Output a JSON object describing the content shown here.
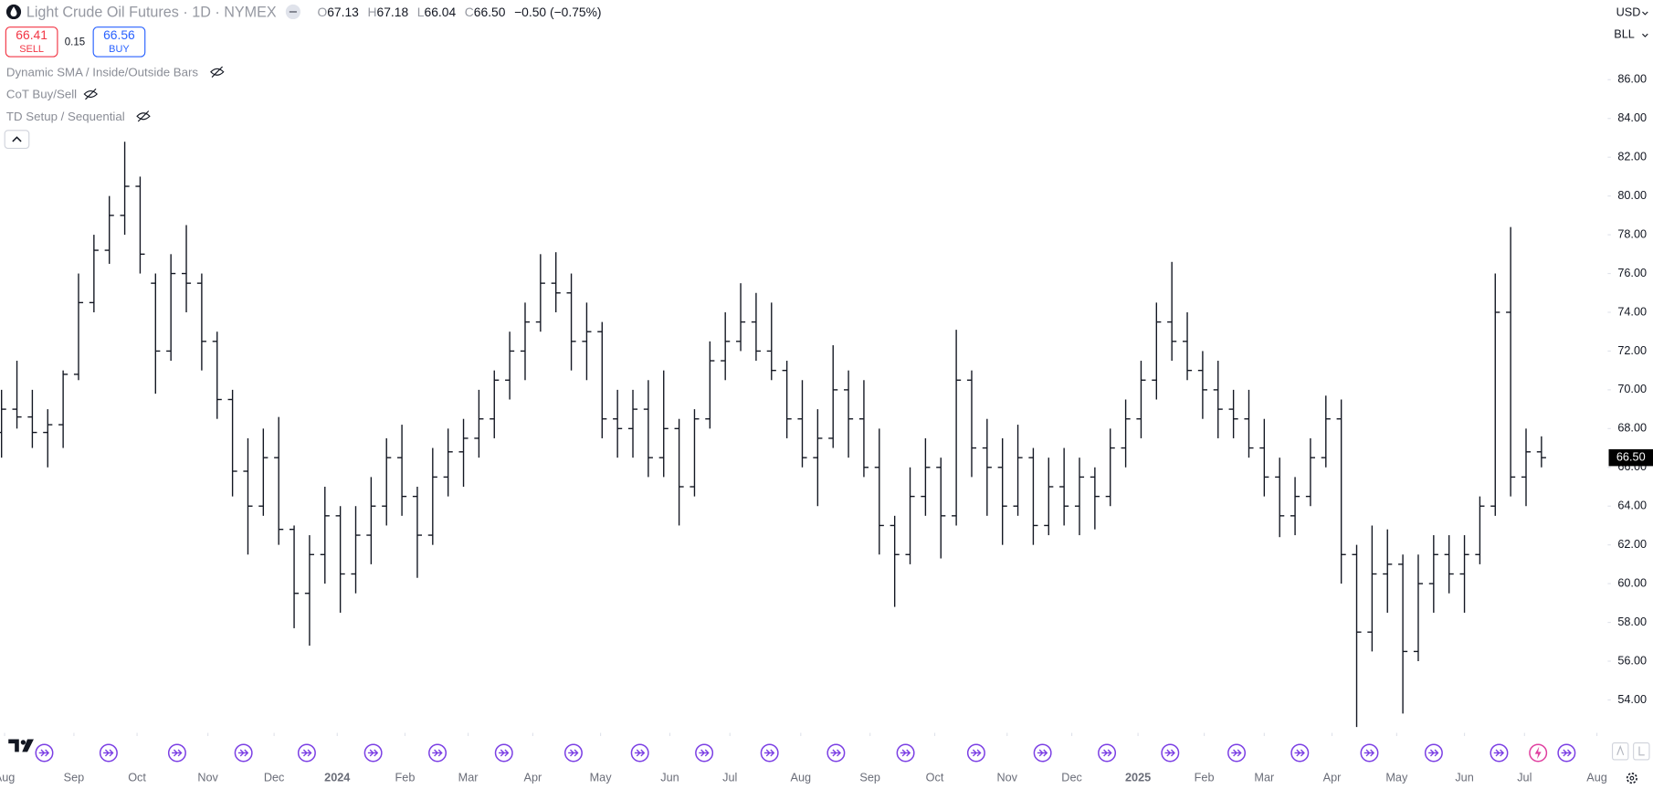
{
  "header": {
    "symbol": "Light Crude Oil Futures · 1D · NYMEX",
    "ohlc_labels": [
      "O",
      "H",
      "L",
      "C"
    ],
    "ohlc_values": [
      "67.13",
      "67.18",
      "66.04",
      "66.50"
    ],
    "change": "−0.50 (−0.75%)"
  },
  "trade": {
    "sell_price": "66.41",
    "sell_label": "SELL",
    "spread": "0.15",
    "buy_price": "66.56",
    "buy_label": "BUY"
  },
  "indicators": [
    "Dynamic SMA / Inside/Outside Bars",
    "CoT Buy/Sell",
    "TD Setup / Sequential"
  ],
  "currency": "USD",
  "unit": "BLL",
  "chart_data": {
    "type": "ohlc",
    "color": "#131722",
    "ohlc": [
      [
        67.8,
        70.0,
        66.5,
        69.0
      ],
      [
        69.0,
        71.5,
        68.0,
        68.6
      ],
      [
        68.6,
        70.0,
        67.0,
        67.8
      ],
      [
        67.8,
        69.0,
        66.0,
        68.2
      ],
      [
        68.2,
        71.0,
        67.0,
        70.8
      ],
      [
        70.8,
        76.0,
        70.5,
        74.5
      ],
      [
        74.5,
        78.0,
        74.0,
        77.2
      ],
      [
        77.2,
        80.0,
        76.5,
        79.0
      ],
      [
        79.0,
        82.8,
        78.0,
        80.5
      ],
      [
        80.5,
        81.0,
        76.0,
        77.0
      ],
      [
        75.5,
        76.0,
        69.8,
        72.0
      ],
      [
        72.0,
        77.0,
        71.5,
        76.0
      ],
      [
        76.0,
        78.5,
        74.0,
        75.5
      ],
      [
        75.5,
        76.0,
        71.0,
        72.5
      ],
      [
        72.5,
        73.0,
        68.5,
        69.5
      ],
      [
        69.5,
        70.0,
        64.5,
        65.8
      ],
      [
        65.8,
        67.5,
        61.5,
        64.0
      ],
      [
        64.0,
        68.0,
        63.5,
        66.5
      ],
      [
        66.5,
        68.6,
        62.0,
        62.8
      ],
      [
        62.8,
        63.0,
        57.7,
        59.5
      ],
      [
        59.5,
        62.5,
        56.8,
        61.5
      ],
      [
        61.5,
        65.0,
        60.0,
        63.5
      ],
      [
        63.5,
        64.0,
        58.5,
        60.5
      ],
      [
        60.5,
        64.0,
        59.5,
        62.5
      ],
      [
        62.5,
        65.5,
        61.0,
        64.0
      ],
      [
        64.0,
        67.5,
        63.0,
        66.5
      ],
      [
        66.5,
        68.2,
        63.5,
        64.5
      ],
      [
        64.5,
        65.0,
        60.3,
        62.5
      ],
      [
        62.5,
        67.0,
        62.0,
        65.5
      ],
      [
        65.5,
        68.0,
        64.5,
        66.8
      ],
      [
        66.8,
        68.5,
        65.0,
        67.5
      ],
      [
        67.5,
        70.0,
        66.5,
        68.5
      ],
      [
        68.5,
        71.0,
        67.5,
        70.5
      ],
      [
        70.5,
        73.0,
        69.5,
        72.0
      ],
      [
        72.0,
        74.5,
        70.5,
        73.5
      ],
      [
        73.5,
        77.0,
        73.0,
        75.5
      ],
      [
        75.5,
        77.1,
        74.0,
        75.0
      ],
      [
        75.0,
        76.0,
        71.0,
        72.5
      ],
      [
        72.5,
        74.5,
        70.5,
        73.0
      ],
      [
        73.0,
        73.5,
        67.5,
        68.5
      ],
      [
        68.5,
        70.0,
        66.5,
        68.0
      ],
      [
        68.0,
        70.0,
        66.5,
        69.0
      ],
      [
        69.0,
        70.5,
        65.5,
        66.5
      ],
      [
        66.5,
        71.0,
        65.5,
        68.0
      ],
      [
        68.0,
        68.5,
        63.0,
        65.0
      ],
      [
        65.0,
        69.0,
        64.5,
        68.5
      ],
      [
        68.5,
        72.5,
        68.0,
        71.5
      ],
      [
        71.5,
        74.0,
        70.5,
        72.5
      ],
      [
        72.5,
        75.5,
        72.0,
        73.5
      ],
      [
        73.5,
        75.0,
        71.5,
        72.0
      ],
      [
        72.0,
        74.5,
        70.5,
        71.0
      ],
      [
        71.0,
        71.5,
        67.5,
        68.5
      ],
      [
        68.5,
        70.5,
        66.0,
        66.5
      ],
      [
        66.5,
        69.0,
        64.0,
        67.5
      ],
      [
        67.5,
        72.3,
        67.0,
        70.0
      ],
      [
        70.0,
        71.0,
        66.5,
        68.5
      ],
      [
        68.5,
        70.5,
        65.5,
        66.0
      ],
      [
        66.0,
        68.0,
        61.5,
        63.0
      ],
      [
        63.0,
        63.5,
        58.8,
        61.5
      ],
      [
        61.5,
        66.0,
        61.0,
        64.5
      ],
      [
        64.5,
        67.5,
        63.5,
        66.0
      ],
      [
        66.0,
        66.5,
        61.3,
        63.5
      ],
      [
        63.5,
        73.1,
        63.0,
        70.5
      ],
      [
        70.5,
        71.0,
        65.5,
        67.0
      ],
      [
        67.0,
        68.5,
        63.5,
        66.0
      ],
      [
        66.0,
        67.5,
        62.0,
        64.0
      ],
      [
        64.0,
        68.2,
        63.5,
        66.5
      ],
      [
        66.5,
        67.0,
        62.0,
        63.0
      ],
      [
        63.0,
        66.5,
        62.5,
        65.0
      ],
      [
        65.0,
        67.0,
        63.0,
        64.0
      ],
      [
        64.0,
        66.5,
        62.5,
        65.5
      ],
      [
        65.5,
        66.0,
        62.8,
        64.5
      ],
      [
        64.5,
        68.0,
        64.0,
        67.0
      ],
      [
        67.0,
        69.5,
        66.0,
        68.5
      ],
      [
        68.5,
        71.5,
        67.5,
        70.5
      ],
      [
        70.5,
        74.5,
        69.5,
        73.5
      ],
      [
        73.5,
        76.6,
        71.5,
        72.5
      ],
      [
        72.5,
        74.0,
        70.5,
        71.0
      ],
      [
        71.0,
        72.0,
        68.5,
        70.0
      ],
      [
        70.0,
        71.5,
        67.5,
        69.0
      ],
      [
        69.0,
        70.0,
        67.5,
        68.5
      ],
      [
        68.5,
        70.0,
        66.5,
        67.0
      ],
      [
        67.0,
        68.5,
        64.5,
        65.5
      ],
      [
        65.5,
        66.5,
        62.4,
        63.5
      ],
      [
        63.5,
        65.5,
        62.5,
        64.5
      ],
      [
        64.5,
        67.5,
        64.0,
        66.5
      ],
      [
        66.5,
        69.7,
        66.0,
        68.5
      ],
      [
        68.5,
        69.5,
        60.0,
        61.5
      ],
      [
        61.5,
        62.0,
        52.6,
        57.5
      ],
      [
        57.5,
        63.0,
        56.5,
        60.5
      ],
      [
        60.5,
        62.8,
        58.5,
        61.0
      ],
      [
        61.0,
        61.5,
        53.3,
        56.5
      ],
      [
        56.5,
        61.5,
        56.0,
        60.0
      ],
      [
        60.0,
        62.5,
        58.5,
        61.5
      ],
      [
        61.5,
        62.5,
        59.5,
        60.5
      ],
      [
        60.5,
        62.5,
        58.5,
        61.5
      ],
      [
        61.5,
        64.5,
        61.0,
        64.0
      ],
      [
        64.0,
        76.0,
        63.5,
        74.0
      ],
      [
        74.0,
        78.4,
        64.5,
        65.5
      ],
      [
        65.5,
        68.0,
        64.0,
        66.8
      ],
      [
        66.8,
        67.6,
        66.0,
        66.5
      ]
    ],
    "xlim": [
      -0.1,
      104.3
    ],
    "xticks": [
      {
        "value": 0.2,
        "label": "Aug"
      },
      {
        "value": 4.7,
        "label": "Sep"
      },
      {
        "value": 8.8,
        "label": "Oct"
      },
      {
        "value": 13.4,
        "label": "Nov"
      },
      {
        "value": 17.7,
        "label": "Dec"
      },
      {
        "value": 21.8,
        "label": "2024"
      },
      {
        "value": 26.2,
        "label": "Feb"
      },
      {
        "value": 30.3,
        "label": "Mar"
      },
      {
        "value": 34.5,
        "label": "Apr"
      },
      {
        "value": 38.9,
        "label": "May"
      },
      {
        "value": 43.4,
        "label": "Jun"
      },
      {
        "value": 47.3,
        "label": "Jul"
      },
      {
        "value": 51.9,
        "label": "Aug"
      },
      {
        "value": 56.4,
        "label": "Sep"
      },
      {
        "value": 60.6,
        "label": "Oct"
      },
      {
        "value": 65.3,
        "label": "Nov"
      },
      {
        "value": 69.5,
        "label": "Dec"
      },
      {
        "value": 73.8,
        "label": "2025"
      },
      {
        "value": 78.1,
        "label": "Feb"
      },
      {
        "value": 82.0,
        "label": "Mar"
      },
      {
        "value": 86.4,
        "label": "Apr"
      },
      {
        "value": 90.6,
        "label": "May"
      },
      {
        "value": 95.0,
        "label": "Jun"
      },
      {
        "value": 98.9,
        "label": "Jul"
      },
      {
        "value": 103.6,
        "label": "Aug"
      }
    ],
    "ylim": [
      52.3,
      90.1
    ],
    "yticks": [
      {
        "value": 54,
        "label": "54.00"
      },
      {
        "value": 56,
        "label": "56.00"
      },
      {
        "value": 58,
        "label": "58.00"
      },
      {
        "value": 60,
        "label": "60.00"
      },
      {
        "value": 62,
        "label": "62.00"
      },
      {
        "value": 64,
        "label": "64.00"
      },
      {
        "value": 66,
        "label": "66.00"
      },
      {
        "value": 68,
        "label": "68.00"
      },
      {
        "value": 70,
        "label": "70.00"
      },
      {
        "value": 72,
        "label": "72.00"
      },
      {
        "value": 74,
        "label": "74.00"
      },
      {
        "value": 76,
        "label": "76.00"
      },
      {
        "value": 78,
        "label": "78.00"
      },
      {
        "value": 80,
        "label": "80.00"
      },
      {
        "value": 82,
        "label": "82.00"
      },
      {
        "value": 84,
        "label": "84.00"
      },
      {
        "value": 86,
        "label": "86.00"
      }
    ],
    "last_price": {
      "value": 66.5,
      "label": "66.50"
    }
  }
}
